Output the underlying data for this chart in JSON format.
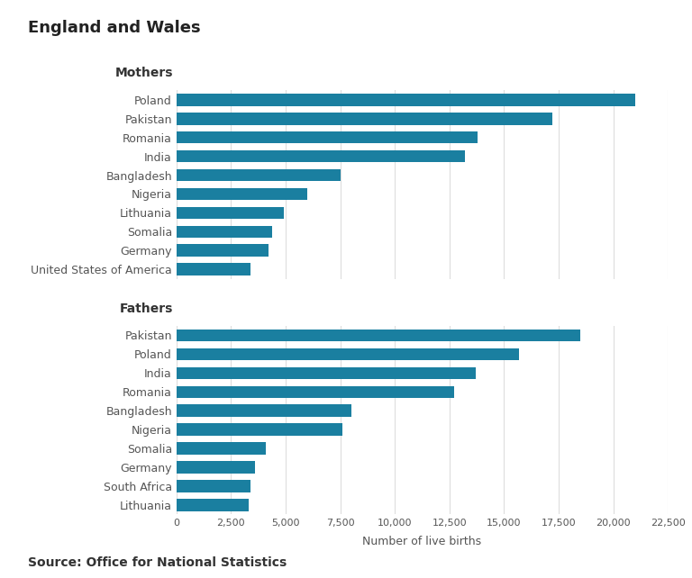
{
  "title": "England and Wales",
  "source": "Source: Office for National Statistics",
  "bar_color": "#1a7fa0",
  "background_color": "#ffffff",
  "mothers_label": "Mothers",
  "fathers_label": "Fathers",
  "mothers": {
    "categories": [
      "Poland",
      "Pakistan",
      "Romania",
      "India",
      "Bangladesh",
      "Nigeria",
      "Lithuania",
      "Somalia",
      "Germany",
      "United States of America"
    ],
    "values": [
      21000,
      17200,
      13800,
      13200,
      7500,
      6000,
      4900,
      4400,
      4200,
      3400
    ]
  },
  "fathers": {
    "categories": [
      "Pakistan",
      "Poland",
      "India",
      "Romania",
      "Bangladesh",
      "Nigeria",
      "Somalia",
      "Germany",
      "South Africa",
      "Lithuania"
    ],
    "values": [
      18500,
      15700,
      13700,
      12700,
      8000,
      7600,
      4100,
      3600,
      3400,
      3300
    ]
  },
  "xlim": [
    0,
    22500
  ],
  "xticks": [
    0,
    2500,
    5000,
    7500,
    10000,
    12500,
    15000,
    17500,
    20000,
    22500
  ],
  "xlabel": "Number of live births",
  "title_fontsize": 13,
  "label_fontsize": 9,
  "axis_fontsize": 8,
  "source_fontsize": 10
}
